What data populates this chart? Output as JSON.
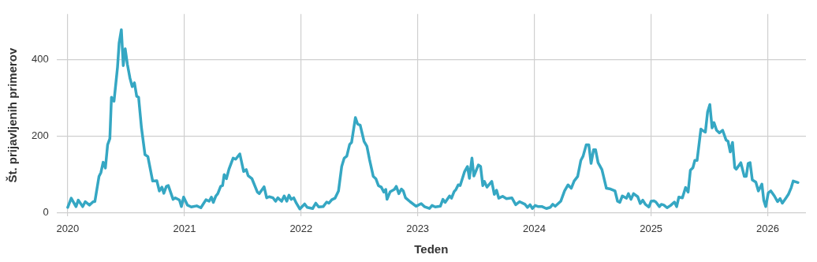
{
  "chart_data": {
    "type": "line",
    "xlabel": "Teden",
    "ylabel": "Št. prijavljenih primerov",
    "x": [
      "2020-01-01",
      "2020-01-12",
      "2020-01-27",
      "2020-02-03",
      "2020-02-17",
      "2020-02-25",
      "2020-03-09",
      "2020-03-21",
      "2020-03-26",
      "2020-04-08",
      "2020-04-14",
      "2020-04-21",
      "2020-04-28",
      "2020-05-05",
      "2020-05-12",
      "2020-05-17",
      "2020-05-25",
      "2020-06-05",
      "2020-06-10",
      "2020-06-17",
      "2020-06-23",
      "2020-06-29",
      "2020-07-06",
      "2020-07-14",
      "2020-07-21",
      "2020-07-28",
      "2020-08-04",
      "2020-08-10",
      "2020-08-19",
      "2020-08-30",
      "2020-09-08",
      "2020-09-23",
      "2020-10-06",
      "2020-10-14",
      "2020-10-22",
      "2020-10-28",
      "2020-11-05",
      "2020-11-11",
      "2020-11-26",
      "2020-12-03",
      "2020-12-16",
      "2020-12-22",
      "2020-12-29",
      "2021-01-10",
      "2021-01-22",
      "2021-02-08",
      "2021-02-21",
      "2021-03-09",
      "2021-03-19",
      "2021-03-26",
      "2021-04-01",
      "2021-04-09",
      "2021-04-15",
      "2021-04-24",
      "2021-04-30",
      "2021-05-05",
      "2021-05-12",
      "2021-05-20",
      "2021-06-02",
      "2021-06-10",
      "2021-06-23",
      "2021-07-05",
      "2021-07-13",
      "2021-07-19",
      "2021-07-31",
      "2021-08-17",
      "2021-08-23",
      "2021-09-07",
      "2021-09-15",
      "2021-09-23",
      "2021-10-05",
      "2021-10-13",
      "2021-10-20",
      "2021-11-01",
      "2021-11-09",
      "2021-11-17",
      "2021-11-24",
      "2021-12-01",
      "2021-12-09",
      "2021-12-17",
      "2021-12-28",
      "2022-01-12",
      "2022-01-20",
      "2022-02-06",
      "2022-02-16",
      "2022-02-25",
      "2022-03-11",
      "2022-03-22",
      "2022-03-29",
      "2022-04-07",
      "2022-04-17",
      "2022-04-28",
      "2022-05-08",
      "2022-05-16",
      "2022-05-24",
      "2022-06-02",
      "2022-06-08",
      "2022-06-20",
      "2022-06-27",
      "2022-07-05",
      "2022-07-17",
      "2022-07-26",
      "2022-08-03",
      "2022-08-15",
      "2022-08-23",
      "2022-08-31",
      "2022-09-09",
      "2022-09-17",
      "2022-09-23",
      "2022-09-27",
      "2022-10-07",
      "2022-10-20",
      "2022-10-26",
      "2022-11-03",
      "2022-11-11",
      "2022-11-17",
      "2022-11-24",
      "2022-12-08",
      "2022-12-27",
      "2023-01-12",
      "2023-01-22",
      "2023-02-07",
      "2023-02-15",
      "2023-02-25",
      "2023-03-13",
      "2023-03-21",
      "2023-03-28",
      "2023-04-11",
      "2023-04-17",
      "2023-04-25",
      "2023-05-01",
      "2023-05-08",
      "2023-05-14",
      "2023-05-28",
      "2023-06-06",
      "2023-06-12",
      "2023-06-20",
      "2023-06-26",
      "2023-07-10",
      "2023-07-17",
      "2023-07-24",
      "2023-07-29",
      "2023-08-06",
      "2023-08-21",
      "2023-08-29",
      "2023-09-05",
      "2023-09-12",
      "2023-09-24",
      "2023-10-06",
      "2023-10-23",
      "2023-11-04",
      "2023-11-16",
      "2023-12-03",
      "2023-12-11",
      "2023-12-19",
      "2023-12-26",
      "2024-01-04",
      "2024-01-14",
      "2024-01-26",
      "2024-02-08",
      "2024-02-20",
      "2024-02-28",
      "2024-03-07",
      "2024-03-24",
      "2024-04-05",
      "2024-04-16",
      "2024-04-26",
      "2024-05-05",
      "2024-05-16",
      "2024-05-26",
      "2024-06-02",
      "2024-06-12",
      "2024-06-20",
      "2024-06-27",
      "2024-07-05",
      "2024-07-11",
      "2024-07-19",
      "2024-07-31",
      "2024-08-14",
      "2024-08-27",
      "2024-09-10",
      "2024-09-18",
      "2024-09-25",
      "2024-10-03",
      "2024-10-16",
      "2024-10-22",
      "2024-10-30",
      "2024-11-07",
      "2024-11-20",
      "2024-11-28",
      "2024-12-06",
      "2024-12-14",
      "2024-12-25",
      "2025-01-01",
      "2025-01-10",
      "2025-01-16",
      "2025-01-27",
      "2025-02-02",
      "2025-02-10",
      "2025-02-20",
      "2025-03-03",
      "2025-03-15",
      "2025-03-22",
      "2025-03-29",
      "2025-04-09",
      "2025-04-19",
      "2025-04-27",
      "2025-05-04",
      "2025-05-12",
      "2025-05-18",
      "2025-05-25",
      "2025-06-06",
      "2025-06-10",
      "2025-06-20",
      "2025-06-27",
      "2025-07-04",
      "2025-07-11",
      "2025-07-17",
      "2025-07-25",
      "2025-08-03",
      "2025-08-13",
      "2025-08-24",
      "2025-08-30",
      "2025-09-06",
      "2025-09-13",
      "2025-09-20",
      "2025-09-25",
      "2025-10-09",
      "2025-10-20",
      "2025-10-26",
      "2025-11-01",
      "2025-11-07",
      "2025-11-14",
      "2025-11-25",
      "2025-12-03",
      "2025-12-14",
      "2025-12-20",
      "2025-12-26",
      "2026-01-03",
      "2026-01-11",
      "2026-01-22",
      "2026-02-01",
      "2026-02-09",
      "2026-02-16",
      "2026-02-26",
      "2026-03-07",
      "2026-03-16",
      "2026-03-22",
      "2026-04-06"
    ],
    "series": [
      {
        "color": "#35a7c3",
        "values": [
          14,
          38,
          16,
          33,
          16,
          29,
          20,
          29,
          29,
          95,
          105,
          132,
          117,
          178,
          194,
          302,
          292,
          381,
          444,
          479,
          385,
          429,
          388,
          352,
          330,
          340,
          305,
          302,
          222,
          152,
          147,
          83,
          84,
          57,
          67,
          51,
          69,
          71,
          35,
          39,
          33,
          16,
          41,
          20,
          15,
          18,
          13,
          34,
          30,
          41,
          27,
          44,
          50,
          69,
          71,
          100,
          89,
          114,
          143,
          140,
          154,
          108,
          113,
          97,
          89,
          54,
          50,
          68,
          39,
          42,
          39,
          30,
          39,
          30,
          44,
          30,
          46,
          35,
          39,
          25,
          10,
          23,
          14,
          11,
          25,
          15,
          16,
          28,
          25,
          34,
          38,
          57,
          121,
          143,
          148,
          179,
          184,
          249,
          232,
          229,
          187,
          174,
          140,
          95,
          89,
          71,
          67,
          54,
          61,
          35,
          55,
          61,
          69,
          50,
          62,
          57,
          39,
          29,
          17,
          24,
          16,
          11,
          19,
          15,
          17,
          35,
          27,
          44,
          38,
          55,
          61,
          73,
          71,
          108,
          121,
          90,
          143,
          96,
          125,
          121,
          71,
          82,
          67,
          82,
          48,
          59,
          38,
          43,
          37,
          39,
          21,
          29,
          22,
          14,
          21,
          11,
          19,
          16,
          16,
          11,
          14,
          22,
          17,
          30,
          57,
          73,
          64,
          83,
          95,
          137,
          148,
          178,
          178,
          129,
          165,
          165,
          131,
          113,
          64,
          62,
          57,
          30,
          27,
          44,
          38,
          50,
          35,
          50,
          42,
          24,
          33,
          22,
          15,
          30,
          31,
          28,
          16,
          22,
          20,
          13,
          19,
          28,
          16,
          41,
          39,
          66,
          54,
          111,
          118,
          137,
          137,
          219,
          216,
          211,
          264,
          283,
          222,
          236,
          216,
          209,
          216,
          190,
          187,
          159,
          184,
          118,
          114,
          131,
          95,
          95,
          129,
          131,
          86,
          80,
          57,
          75,
          32,
          16,
          52,
          57,
          44,
          29,
          37,
          25,
          37,
          48,
          66,
          83,
          79
        ]
      }
    ],
    "xlim": [
      "2019-11-27",
      "2026-05-01"
    ],
    "xticks": [
      "2020",
      "2021",
      "2022",
      "2023",
      "2024",
      "2025",
      "2026"
    ],
    "ylim": [
      -10,
      520
    ],
    "yticks": [
      0,
      200,
      400
    ],
    "grid": true,
    "legend": false,
    "marker": "none",
    "line_style": "solid"
  }
}
